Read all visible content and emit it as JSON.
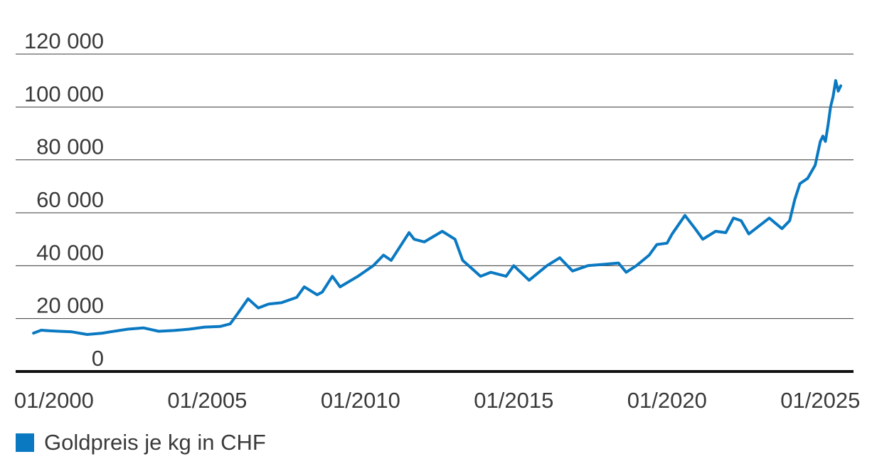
{
  "chart_data": {
    "type": "line",
    "title": "",
    "xlabel": "",
    "ylabel": "",
    "x_ticks": [
      "01/2000",
      "01/2005",
      "01/2010",
      "01/2015",
      "01/2020",
      "01/2025"
    ],
    "y_ticks": [
      "0",
      "20 000",
      "40 000",
      "60 000",
      "80 000",
      "100 000",
      "120 000"
    ],
    "ylim": [
      0,
      120000
    ],
    "xlim": [
      "1998-10",
      "2026-02"
    ],
    "grid": "horizontal",
    "legend_position": "bottom-left",
    "series": [
      {
        "name": "Goldpreis je kg in CHF",
        "color": "#0a79c2",
        "points": [
          [
            "1999-05",
            14500
          ],
          [
            "1999-08",
            15600
          ],
          [
            "1999-11",
            15400
          ],
          [
            "2000-03",
            15200
          ],
          [
            "2000-08",
            15000
          ],
          [
            "2001-02",
            14000
          ],
          [
            "2001-08",
            14500
          ],
          [
            "2001-11",
            15000
          ],
          [
            "2002-06",
            16000
          ],
          [
            "2002-12",
            16500
          ],
          [
            "2003-06",
            15200
          ],
          [
            "2003-12",
            15500
          ],
          [
            "2004-06",
            16000
          ],
          [
            "2004-12",
            16800
          ],
          [
            "2005-06",
            17000
          ],
          [
            "2005-10",
            18000
          ],
          [
            "2006-01",
            22000
          ],
          [
            "2006-05",
            27500
          ],
          [
            "2006-09",
            24000
          ],
          [
            "2007-01",
            25500
          ],
          [
            "2007-06",
            26000
          ],
          [
            "2007-12",
            28000
          ],
          [
            "2008-03",
            32000
          ],
          [
            "2008-08",
            29000
          ],
          [
            "2008-10",
            30000
          ],
          [
            "2009-02",
            36000
          ],
          [
            "2009-05",
            32000
          ],
          [
            "2009-12",
            36000
          ],
          [
            "2010-06",
            40000
          ],
          [
            "2010-10",
            44000
          ],
          [
            "2011-01",
            42000
          ],
          [
            "2011-08",
            52500
          ],
          [
            "2011-10",
            50000
          ],
          [
            "2012-02",
            49000
          ],
          [
            "2012-09",
            53000
          ],
          [
            "2013-02",
            50000
          ],
          [
            "2013-05",
            42000
          ],
          [
            "2013-12",
            36000
          ],
          [
            "2014-04",
            37500
          ],
          [
            "2014-10",
            36000
          ],
          [
            "2015-01",
            40000
          ],
          [
            "2015-07",
            34500
          ],
          [
            "2016-02",
            40000
          ],
          [
            "2016-07",
            43000
          ],
          [
            "2016-12",
            38000
          ],
          [
            "2017-06",
            40000
          ],
          [
            "2017-12",
            40500
          ],
          [
            "2018-06",
            41000
          ],
          [
            "2018-09",
            37500
          ],
          [
            "2019-01",
            40000
          ],
          [
            "2019-06",
            44000
          ],
          [
            "2019-09",
            48000
          ],
          [
            "2020-01",
            48500
          ],
          [
            "2020-03",
            52000
          ],
          [
            "2020-08",
            59000
          ],
          [
            "2020-12",
            54000
          ],
          [
            "2021-03",
            50000
          ],
          [
            "2021-08",
            53000
          ],
          [
            "2021-12",
            52500
          ],
          [
            "2022-03",
            58000
          ],
          [
            "2022-06",
            57000
          ],
          [
            "2022-09",
            52000
          ],
          [
            "2023-01",
            55000
          ],
          [
            "2023-05",
            58000
          ],
          [
            "2023-10",
            54000
          ],
          [
            "2024-01",
            57000
          ],
          [
            "2024-03",
            65000
          ],
          [
            "2024-05",
            71000
          ],
          [
            "2024-08",
            73000
          ],
          [
            "2024-11",
            78000
          ],
          [
            "2025-01",
            87000
          ],
          [
            "2025-02",
            89000
          ],
          [
            "2025-03",
            87000
          ],
          [
            "2025-04",
            93000
          ],
          [
            "2025-05",
            100000
          ],
          [
            "2025-06",
            104000
          ],
          [
            "2025-07",
            110000
          ],
          [
            "2025-08",
            106000
          ],
          [
            "2025-09",
            108000
          ]
        ]
      }
    ]
  }
}
